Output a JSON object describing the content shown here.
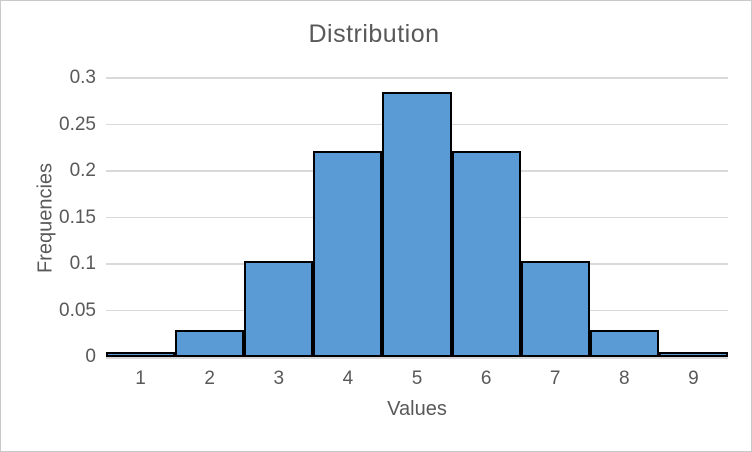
{
  "chart_data": {
    "type": "bar",
    "subtype": "histogram",
    "title": "Distribution",
    "xlabel": "Values",
    "ylabel": "Frequencies",
    "categories": [
      "1",
      "2",
      "3",
      "4",
      "5",
      "6",
      "7",
      "8",
      "9"
    ],
    "values": [
      0.005,
      0.029,
      0.103,
      0.221,
      0.285,
      0.221,
      0.103,
      0.029,
      0.005
    ],
    "ylim": [
      0,
      0.3
    ],
    "yticks": [
      0,
      0.05,
      0.1,
      0.15,
      0.2,
      0.25,
      0.3
    ],
    "ytick_labels": [
      "0",
      "0.05",
      "0.1",
      "0.15",
      "0.2",
      "0.25",
      "0.3"
    ],
    "grid": true,
    "legend_position": "none",
    "bar_gap": 0,
    "colors": {
      "bar_fill": "#5b9bd5",
      "bar_border": "#000000",
      "gridline": "#d9d9d9",
      "axis_line": "#d9d9d9",
      "text": "#595959",
      "frame_border": "#c9c9c9",
      "background": "#ffffff"
    }
  }
}
